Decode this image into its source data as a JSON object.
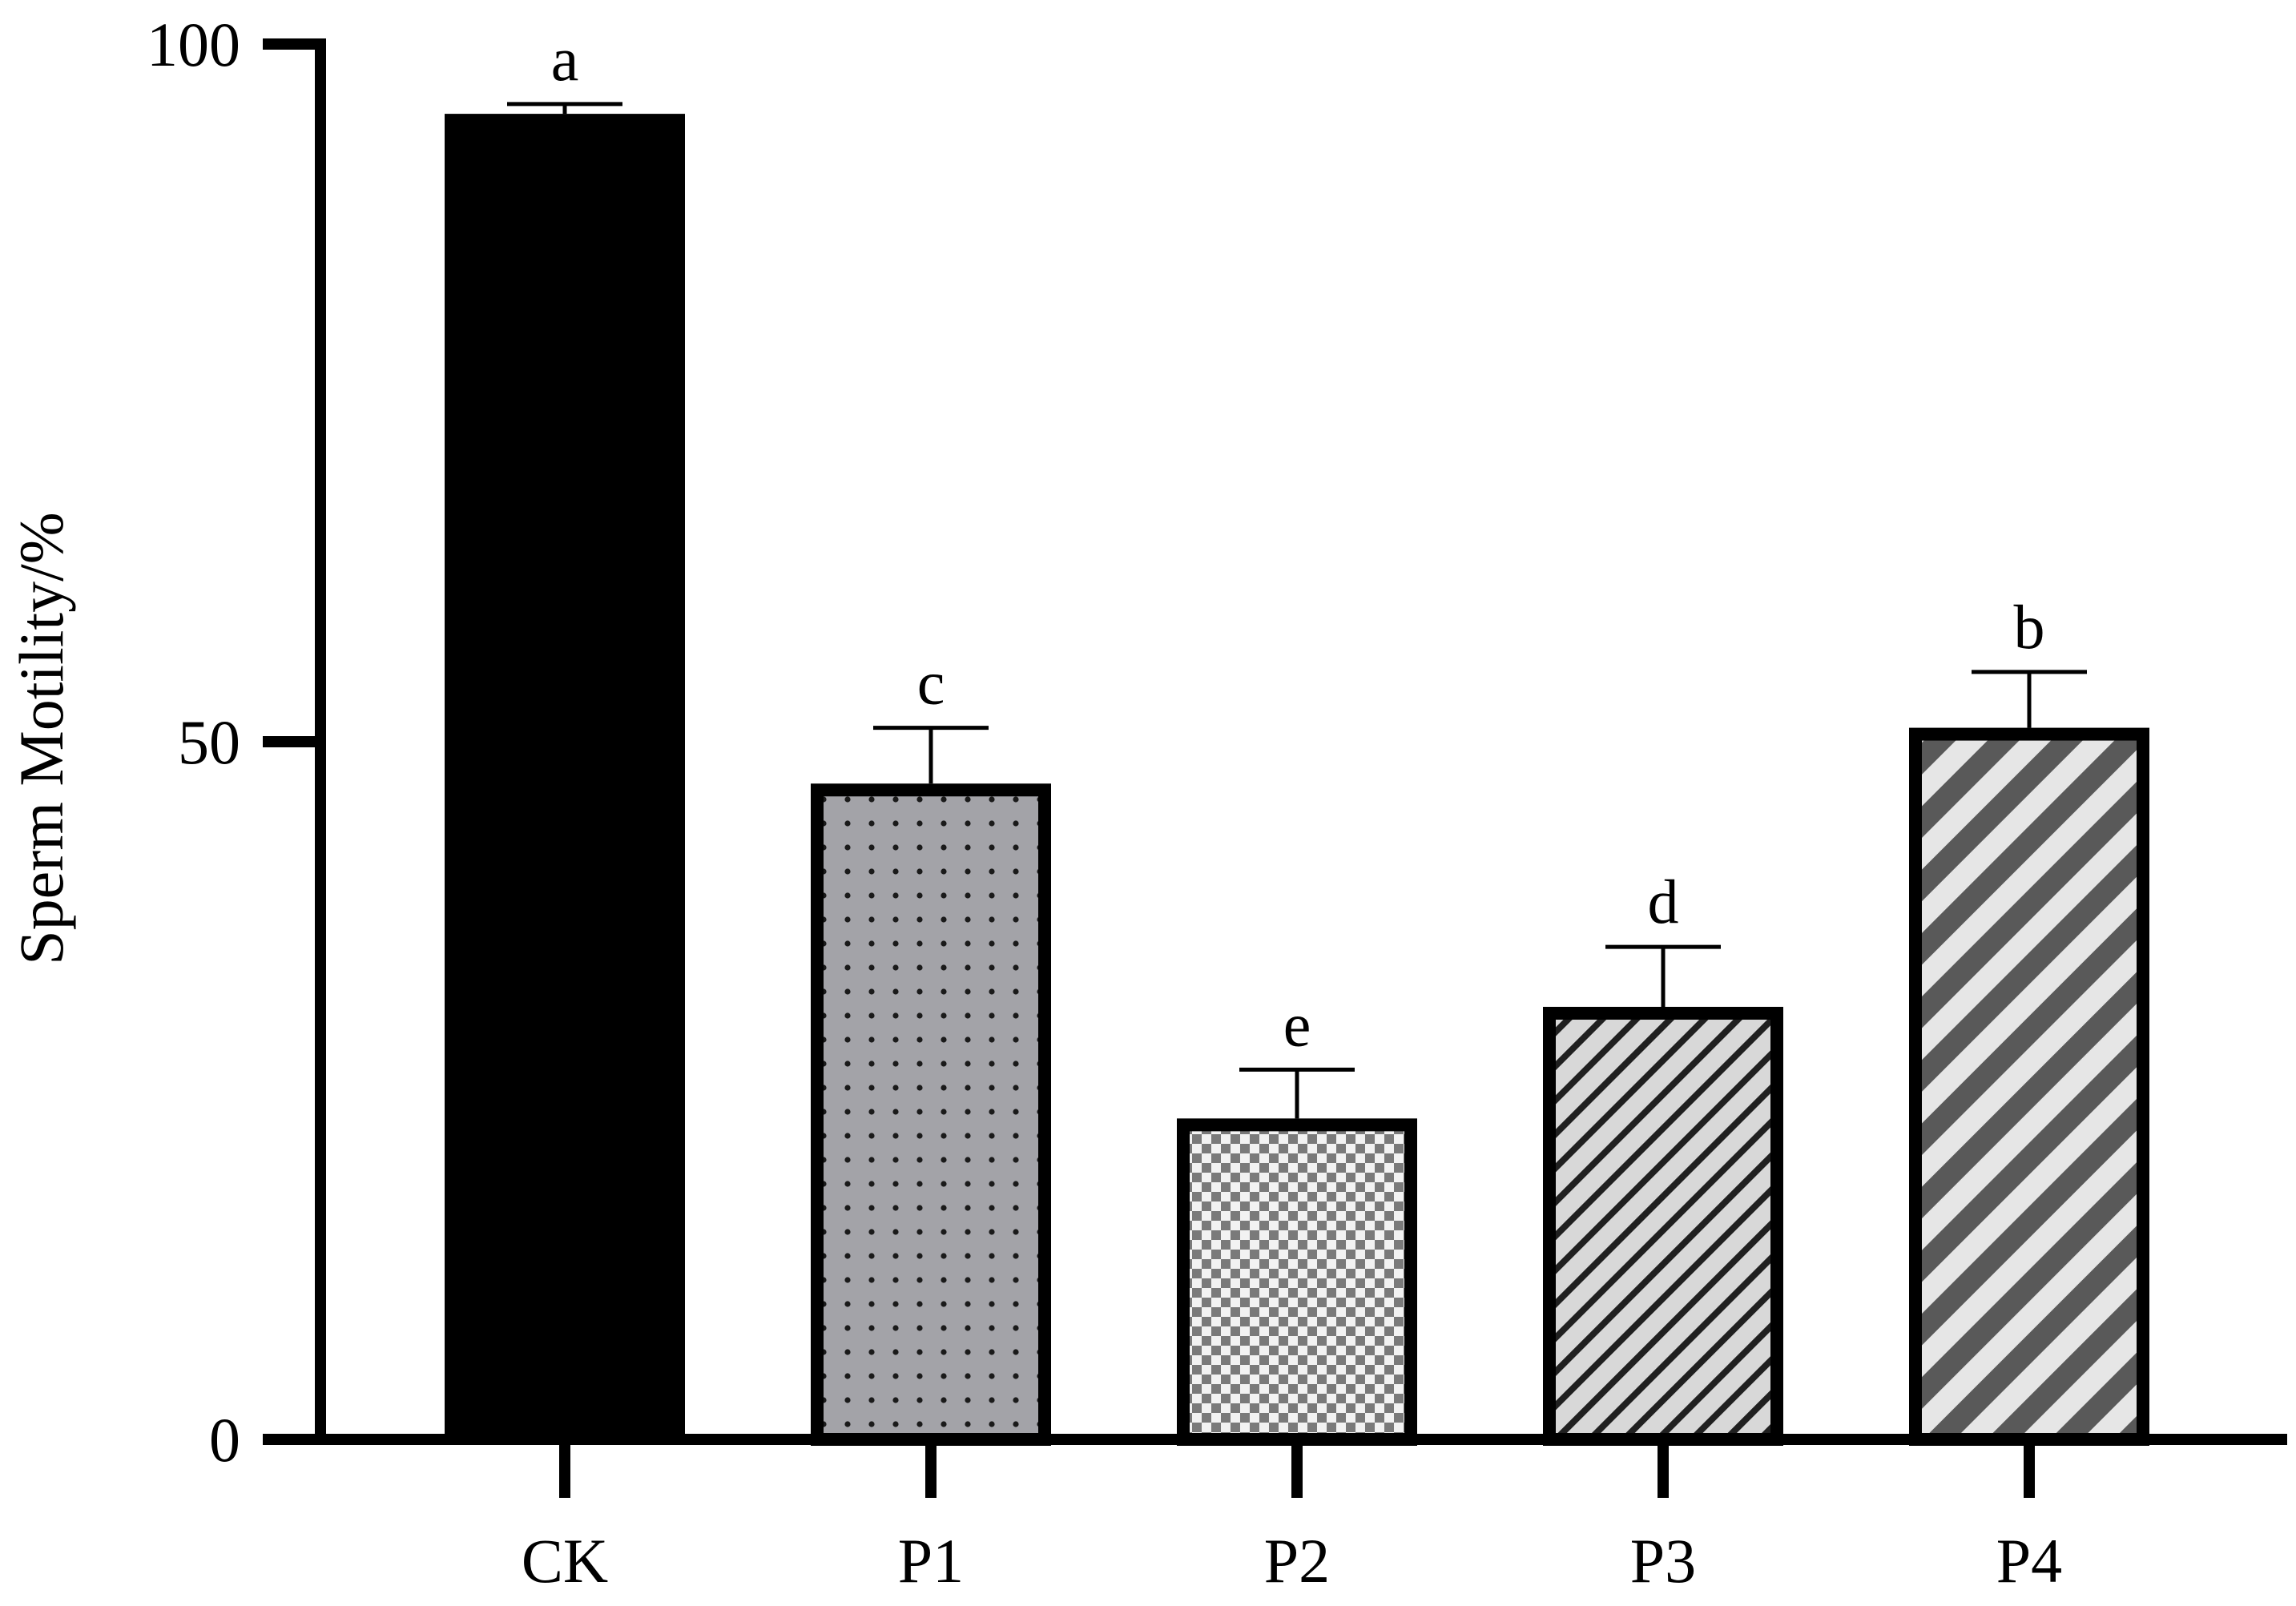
{
  "chart_data": {
    "type": "bar",
    "categories": [
      "CK",
      "P1",
      "P2",
      "P3",
      "P4"
    ],
    "values": [
      95,
      47,
      23,
      31,
      51
    ],
    "errors": [
      0.7,
      4,
      3.5,
      4.3,
      4
    ],
    "significance": [
      "a",
      "c",
      "e",
      "d",
      "b"
    ],
    "patterns": [
      "solid",
      "dots",
      "checker",
      "hatch-fine",
      "hatch-wide"
    ],
    "ylabel": "Sperm Motility/%",
    "xlabel": "",
    "title": "",
    "ylim": [
      0,
      100
    ],
    "yticks": [
      0,
      50,
      100
    ],
    "ytick_labels": [
      "0",
      "50",
      "100"
    ],
    "grid": false,
    "legend": "none"
  },
  "colors": {
    "solid": "#000000",
    "dots_bg": "#a3a3a8",
    "dots_fg": "#1a1a1a",
    "checker_a": "#7a7a7a",
    "checker_b": "#f2f2f2",
    "hatch_fine_bg": "#d8d8d8",
    "hatch_fine_fg": "#202020",
    "hatch_wide_a": "#595959",
    "hatch_wide_b": "#e6e6e6",
    "axis": "#000000"
  }
}
